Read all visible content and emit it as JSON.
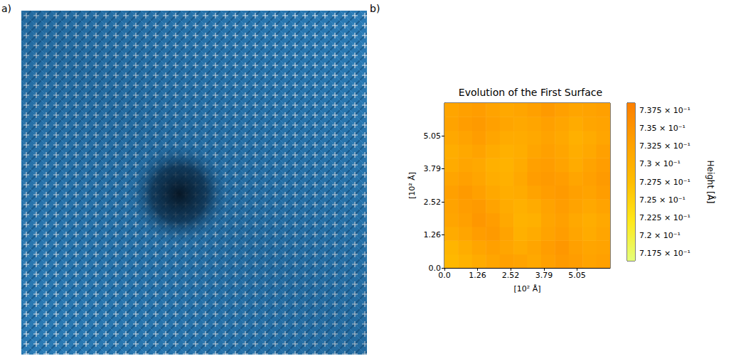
{
  "panel_labels": [
    "a)",
    "b)"
  ],
  "chart_data": {
    "type": "heatmap",
    "title": "Evolution of the First Surface",
    "x_label": "[10² Å]",
    "y_label": "[10² Å]",
    "xlim": [
      0,
      6.31
    ],
    "ylim": [
      0,
      6.31
    ],
    "xticks": [
      {
        "value": 0,
        "label": "0.0"
      },
      1.26,
      2.52,
      3.79,
      5.05
    ],
    "yticks": [
      {
        "value": 0,
        "label": "0.0"
      },
      1.26,
      2.52,
      3.79,
      5.05
    ],
    "cells": [
      [
        0.7285,
        0.7295,
        0.731,
        0.732,
        0.733,
        0.7325,
        0.7315,
        0.733,
        0.734,
        0.7335,
        0.7325,
        0.733
      ],
      [
        0.729,
        0.7305,
        0.732,
        0.733,
        0.732,
        0.731,
        0.732,
        0.7335,
        0.7345,
        0.733,
        0.732,
        0.7325
      ],
      [
        0.731,
        0.732,
        0.7335,
        0.734,
        0.7325,
        0.73,
        0.731,
        0.7325,
        0.7335,
        0.732,
        0.731,
        0.732
      ],
      [
        0.732,
        0.733,
        0.7345,
        0.7335,
        0.7315,
        0.7295,
        0.73,
        0.732,
        0.733,
        0.7315,
        0.7305,
        0.7315
      ],
      [
        0.7325,
        0.7335,
        0.734,
        0.7325,
        0.731,
        0.73,
        0.731,
        0.7325,
        0.7335,
        0.7325,
        0.7315,
        0.7325
      ],
      [
        0.733,
        0.734,
        0.733,
        0.7315,
        0.7305,
        0.731,
        0.7325,
        0.7335,
        0.734,
        0.733,
        0.7325,
        0.7335
      ],
      [
        0.732,
        0.733,
        0.732,
        0.7305,
        0.73,
        0.7315,
        0.7335,
        0.734,
        0.7335,
        0.732,
        0.733,
        0.734
      ],
      [
        0.731,
        0.732,
        0.7315,
        0.73,
        0.7295,
        0.731,
        0.733,
        0.7335,
        0.7325,
        0.731,
        0.7325,
        0.7335
      ],
      [
        0.7305,
        0.7315,
        0.7325,
        0.731,
        0.73,
        0.7305,
        0.732,
        0.733,
        0.732,
        0.7305,
        0.7315,
        0.733
      ],
      [
        0.7315,
        0.7325,
        0.7335,
        0.732,
        0.731,
        0.731,
        0.7315,
        0.7325,
        0.7315,
        0.73,
        0.731,
        0.732
      ],
      [
        0.7325,
        0.7335,
        0.734,
        0.733,
        0.732,
        0.7315,
        0.732,
        0.733,
        0.732,
        0.731,
        0.732,
        0.7325
      ],
      [
        0.732,
        0.733,
        0.7335,
        0.7325,
        0.7315,
        0.732,
        0.733,
        0.734,
        0.733,
        0.732,
        0.7325,
        0.733
      ]
    ],
    "color_label": "Height [Å]",
    "color_range": [
      0.7165,
      0.7385
    ],
    "color_ticks": [
      {
        "value": 0.7175,
        "label": "7.175 × 10⁻¹"
      },
      {
        "value": 0.72,
        "label": "7.2 × 10⁻¹"
      },
      {
        "value": 0.7225,
        "label": "7.225 × 10⁻¹"
      },
      {
        "value": 0.725,
        "label": "7.25 × 10⁻¹"
      },
      {
        "value": 0.7275,
        "label": "7.275 × 10⁻¹"
      },
      {
        "value": 0.73,
        "label": "7.3 × 10⁻¹"
      },
      {
        "value": 0.7325,
        "label": "7.325 × 10⁻¹"
      },
      {
        "value": 0.735,
        "label": "7.35 × 10⁻¹"
      },
      {
        "value": 0.7375,
        "label": "7.375 × 10⁻¹"
      }
    ]
  }
}
